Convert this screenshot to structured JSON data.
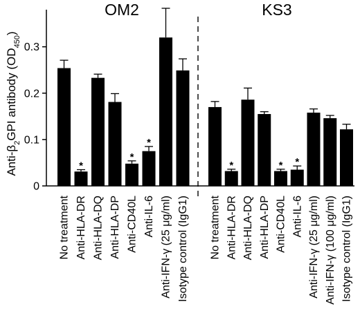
{
  "chart_data": {
    "type": "bar",
    "ylabel_prefix": "Anti-β",
    "ylabel_sub": "2",
    "ylabel_suffix": "GPI antibody (OD",
    "ylabel_unit_sub": "450",
    "ylabel_close": ")",
    "ylim": [
      0,
      0.38
    ],
    "yticks": [
      0,
      0.1,
      0.2,
      0.3
    ],
    "ytick_labels": [
      "0",
      "0.1",
      "0.2",
      "0.3"
    ],
    "significance_marker": "*",
    "panels": [
      {
        "title": "OM2",
        "categories": [
          "No treatment",
          "Anti-HLA-DR",
          "Anti-HLA-DQ",
          "Anti-HLA-DP",
          "Anti-CD40L",
          "Anti-IL-6",
          "Anti-IFN-γ (25 μg/ml)",
          "Isotype control (IgG1)"
        ],
        "values": [
          0.254,
          0.031,
          0.233,
          0.181,
          0.048,
          0.075,
          0.32,
          0.249
        ],
        "errors": [
          0.017,
          0.004,
          0.008,
          0.018,
          0.006,
          0.01,
          0.063,
          0.025
        ],
        "significant": [
          false,
          true,
          false,
          false,
          true,
          true,
          false,
          false
        ]
      },
      {
        "title": "KS3",
        "categories": [
          "No treatment",
          "Anti-HLA-DR",
          "Anti-HLA-DQ",
          "Anti-HLA-DP",
          "Anti-CD40L",
          "Anti-IL-6",
          "Anti-IFN-γ (25 μg/ml)",
          "Anti-IFN-γ (100 μg/ml)",
          "Isotype control (IgG1)"
        ],
        "values": [
          0.17,
          0.032,
          0.186,
          0.155,
          0.032,
          0.035,
          0.158,
          0.146,
          0.122
        ],
        "errors": [
          0.012,
          0.004,
          0.025,
          0.005,
          0.004,
          0.008,
          0.008,
          0.006,
          0.011
        ],
        "significant": [
          false,
          true,
          false,
          false,
          true,
          true,
          false,
          false,
          false
        ]
      }
    ],
    "colors": {
      "bar": "#000000",
      "axis": "#000000"
    }
  }
}
